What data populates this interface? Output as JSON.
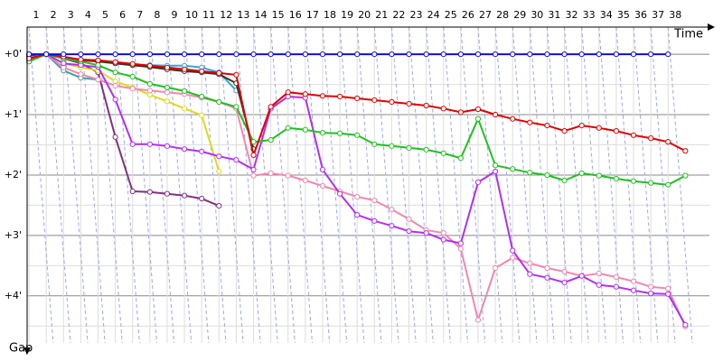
{
  "chart_data": {
    "type": "line",
    "x_label": "Time",
    "y_label": "Gap",
    "x": [
      1,
      2,
      3,
      4,
      5,
      6,
      7,
      8,
      9,
      10,
      11,
      12,
      13,
      14,
      15,
      16,
      17,
      18,
      19,
      20,
      21,
      22,
      23,
      24,
      25,
      26,
      27,
      28,
      29,
      30,
      31,
      32,
      33,
      34,
      35,
      36,
      37,
      38,
      39
    ],
    "xlim": [
      0.5,
      40.5
    ],
    "xticks": [
      1,
      2,
      3,
      4,
      5,
      6,
      7,
      8,
      9,
      10,
      11,
      12,
      13,
      14,
      15,
      16,
      17,
      18,
      19,
      20,
      21,
      22,
      23,
      24,
      25,
      26,
      27,
      28,
      29,
      30,
      31,
      32,
      33,
      34,
      35,
      36,
      37,
      38
    ],
    "ylim": [
      -0.45,
      4.78
    ],
    "inverted_y": true,
    "yticks": [
      {
        "value": 0,
        "label": "+0'"
      },
      {
        "value": 1,
        "label": "+1'"
      },
      {
        "value": 2,
        "label": "+2'"
      },
      {
        "value": 3,
        "label": "+3'"
      },
      {
        "value": 4,
        "label": "+4'"
      }
    ],
    "grid": true,
    "series": [
      {
        "color": "#803080",
        "values": [
          0.04,
          0,
          0.07,
          0.15,
          0.3,
          1.37,
          2.27,
          2.28,
          2.31,
          2.34,
          2.39,
          2.51,
          null,
          null,
          null,
          null,
          null,
          null,
          null,
          null,
          null,
          null,
          null,
          null,
          null,
          null,
          null,
          null,
          null,
          null,
          null,
          null,
          null,
          null,
          null,
          null,
          null,
          null,
          null
        ]
      },
      {
        "color": "#e0d820",
        "values": [
          0.09,
          0,
          0.15,
          0.22,
          0.27,
          0.45,
          0.55,
          0.67,
          0.78,
          0.9,
          1.01,
          1.94,
          null,
          null,
          null,
          null,
          null,
          null,
          null,
          null,
          null,
          null,
          null,
          null,
          null,
          null,
          null,
          null,
          null,
          null,
          null,
          null,
          null,
          null,
          null,
          null,
          null,
          null,
          null
        ]
      },
      {
        "color": "#30a8e0",
        "values": [
          0,
          0,
          0.07,
          0.09,
          0.1,
          0.15,
          0.18,
          0.18,
          0.19,
          0.19,
          0.22,
          0.3,
          0.6,
          null,
          null,
          null,
          null,
          null,
          null,
          null,
          null,
          null,
          null,
          null,
          null,
          null,
          null,
          null,
          null,
          null,
          null,
          null,
          null,
          null,
          null,
          null,
          null,
          null,
          null
        ]
      },
      {
        "color": "#403020",
        "values": [
          0.04,
          0,
          0.06,
          0.1,
          0.12,
          0.15,
          0.18,
          0.21,
          0.25,
          0.28,
          0.3,
          0.33,
          0.48,
          1.57,
          null,
          null,
          null,
          null,
          null,
          null,
          null,
          null,
          null,
          null,
          null,
          null,
          null,
          null,
          null,
          null,
          null,
          null,
          null,
          null,
          null,
          null,
          null,
          null,
          null
        ]
      },
      {
        "color": "#40a0a0",
        "values": [
          0.12,
          0,
          0.27,
          0.39,
          0.42,
          null,
          null,
          null,
          null,
          null,
          null,
          null,
          null,
          null,
          null,
          null,
          null,
          null,
          null,
          null,
          null,
          null,
          null,
          null,
          null,
          null,
          null,
          null,
          null,
          null,
          null,
          null,
          null,
          null,
          null,
          null,
          null,
          null,
          null
        ]
      },
      {
        "color": "#f088b0",
        "values": [
          0.06,
          0,
          0.22,
          0.33,
          0.42,
          0.52,
          0.57,
          0.6,
          0.63,
          0.66,
          0.72,
          0.79,
          0.9,
          2.01,
          1.97,
          2.01,
          2.09,
          2.18,
          2.27,
          2.36,
          2.42,
          2.57,
          2.73,
          2.91,
          2.96,
          3.22,
          4.4,
          3.54,
          3.37,
          3.46,
          3.54,
          3.6,
          3.67,
          3.63,
          3.69,
          3.76,
          3.85,
          3.88,
          4.51
        ]
      },
      {
        "color": "#b030f0",
        "values": [
          0.09,
          0,
          0.15,
          0.18,
          0.21,
          0.75,
          1.49,
          1.49,
          1.52,
          1.57,
          1.61,
          1.69,
          1.75,
          1.91,
          0.9,
          0.7,
          0.72,
          1.91,
          2.31,
          2.66,
          2.76,
          2.84,
          2.93,
          2.96,
          3.07,
          3.13,
          2.12,
          1.94,
          3.25,
          3.64,
          3.7,
          3.78,
          3.67,
          3.82,
          3.85,
          3.91,
          3.96,
          3.97,
          4.48
        ]
      },
      {
        "color": "#20c020",
        "values": [
          0.12,
          0,
          0.07,
          0.12,
          0.18,
          0.3,
          0.37,
          0.49,
          0.55,
          0.61,
          0.7,
          0.79,
          0.87,
          1.45,
          1.42,
          1.22,
          1.25,
          1.3,
          1.31,
          1.34,
          1.49,
          1.52,
          1.55,
          1.58,
          1.64,
          1.72,
          1.07,
          1.84,
          1.9,
          1.96,
          2,
          2.09,
          1.97,
          2.01,
          2.06,
          2.1,
          2.13,
          2.16,
          2.01
        ]
      },
      {
        "color": "#e00000",
        "values": [
          0.07,
          0,
          0.04,
          0.09,
          0.1,
          0.13,
          0.16,
          0.19,
          0.22,
          0.25,
          0.28,
          0.31,
          0.34,
          1.67,
          0.87,
          0.63,
          0.66,
          0.69,
          0.7,
          0.73,
          0.76,
          0.79,
          0.82,
          0.85,
          0.9,
          0.96,
          0.91,
          1,
          1.07,
          1.13,
          1.18,
          1.27,
          1.18,
          1.22,
          1.27,
          1.34,
          1.39,
          1.45,
          1.6
        ]
      },
      {
        "color": "#1010d0",
        "values": [
          0,
          0,
          0,
          0,
          0,
          0,
          0,
          0,
          0,
          0,
          0,
          0,
          0,
          0,
          0,
          0,
          0,
          0,
          0,
          0,
          0,
          0,
          0,
          0,
          0,
          0,
          0,
          0,
          0,
          0,
          0,
          0,
          0,
          0,
          0,
          0,
          0,
          0,
          null
        ]
      }
    ]
  }
}
